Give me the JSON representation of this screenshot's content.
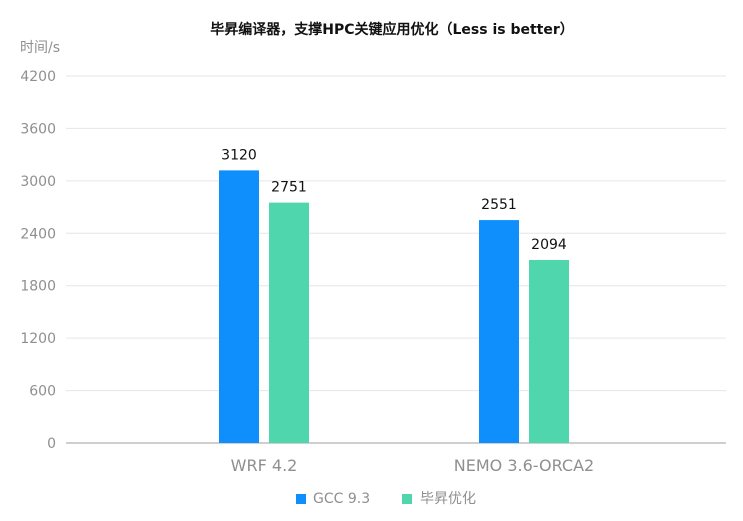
{
  "chart_data": {
    "type": "bar",
    "title": "毕昇编译器，支撑HPC关键应用优化（Less is better）",
    "ylabel": "时间/s",
    "xlabel": "",
    "categories": [
      "WRF 4.2",
      "NEMO 3.6-ORCA2"
    ],
    "series": [
      {
        "name": "GCC 9.3",
        "values": [
          3120,
          2551
        ],
        "value_labels": [
          "3120",
          "2551"
        ],
        "color": "#0f8ffb"
      },
      {
        "name": "毕昇优化",
        "values": [
          2751,
          2094
        ],
        "value_labels": [
          "2751",
          "2094"
        ],
        "color": "#4fd6ad"
      }
    ],
    "ylim": [
      0,
      4200
    ],
    "yticks": [
      0,
      600,
      1200,
      1800,
      2400,
      3000,
      3600,
      4200
    ],
    "ytick_labels": [
      "0",
      "600",
      "1200",
      "1800",
      "2400",
      "3000",
      "3600",
      "4200"
    ],
    "grid": true,
    "legend_position": "bottom"
  }
}
